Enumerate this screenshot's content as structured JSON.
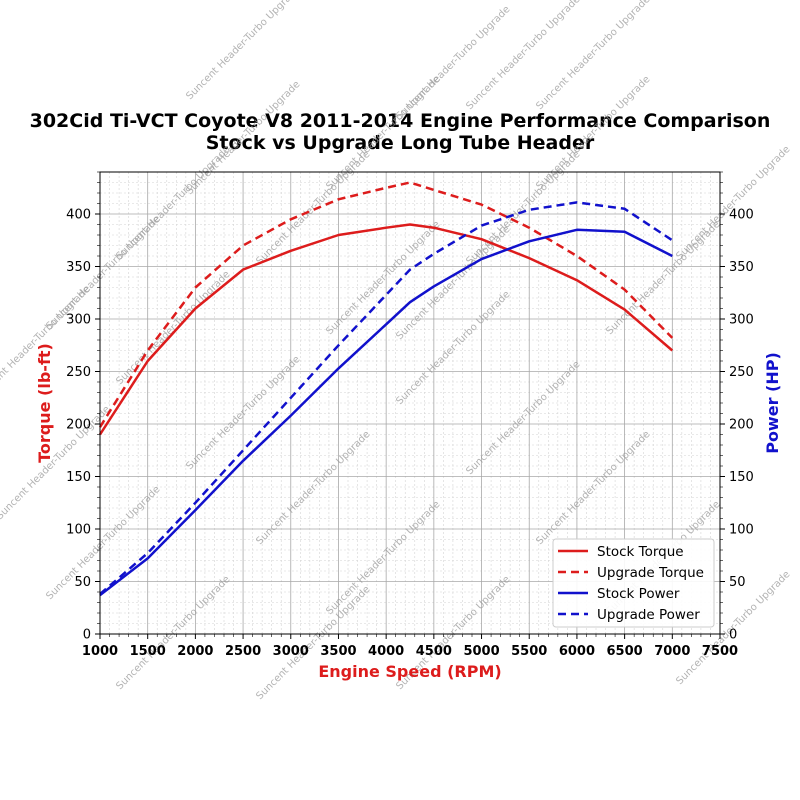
{
  "chart_data": {
    "type": "line",
    "title": "302Cid Ti-VCT Coyote V8 2011-2014 Engine Performance Comparison",
    "subtitle": "Stock vs Upgrade Long Tube Header",
    "xlabel": "Engine Speed (RPM)",
    "ylabel_left": "Torque (lb-ft)",
    "ylabel_right": "Power (HP)",
    "xlim": [
      1000,
      7500
    ],
    "ylim": [
      0,
      440
    ],
    "x_ticks": [
      "1000",
      "1500",
      "2000",
      "2500",
      "3000",
      "3500",
      "4000",
      "4500",
      "5000",
      "5500",
      "6000",
      "6500",
      "7000",
      "7500"
    ],
    "y_ticks": [
      "0",
      "50",
      "100",
      "150",
      "200",
      "250",
      "300",
      "350",
      "400"
    ],
    "grid": true,
    "legend_position": "lower-right",
    "watermark": "Suncent Header-Turbo Upgrade",
    "colors": {
      "torque": "#dd1c1c",
      "power": "#1111cc"
    },
    "series": [
      {
        "name": "Stock Torque",
        "axis": "left",
        "color": "#dd1c1c",
        "style": "solid",
        "x": [
          1000,
          1500,
          2000,
          2500,
          3000,
          3500,
          4000,
          4250,
          4500,
          5000,
          5500,
          6000,
          6500,
          7000
        ],
        "values": [
          190,
          260,
          310,
          347,
          365,
          380,
          387,
          390,
          387,
          376,
          358,
          337,
          309,
          270
        ]
      },
      {
        "name": "Upgrade Torque",
        "axis": "left",
        "color": "#dd1c1c",
        "style": "dashed",
        "x": [
          1000,
          1500,
          2000,
          2500,
          3000,
          3500,
          4000,
          4250,
          4500,
          5000,
          5500,
          6000,
          6500,
          7000
        ],
        "values": [
          197,
          270,
          330,
          370,
          395,
          414,
          425,
          430,
          423,
          409,
          387,
          360,
          328,
          282
        ]
      },
      {
        "name": "Stock Power",
        "axis": "right",
        "color": "#1111cc",
        "style": "solid",
        "x": [
          1000,
          1500,
          2000,
          2500,
          3000,
          3500,
          4000,
          4250,
          4500,
          5000,
          5500,
          6000,
          6500,
          7000
        ],
        "values": [
          37,
          72,
          118,
          165,
          208,
          253,
          295,
          316,
          331,
          357,
          374,
          385,
          383,
          360
        ]
      },
      {
        "name": "Upgrade Power",
        "axis": "right",
        "color": "#1111cc",
        "style": "dashed",
        "x": [
          1000,
          1500,
          2000,
          2500,
          3000,
          3500,
          4000,
          4250,
          4500,
          5000,
          5500,
          6000,
          6500,
          7000
        ],
        "values": [
          38,
          77,
          125,
          175,
          225,
          275,
          323,
          347,
          362,
          389,
          404,
          411,
          405,
          375
        ]
      }
    ]
  }
}
